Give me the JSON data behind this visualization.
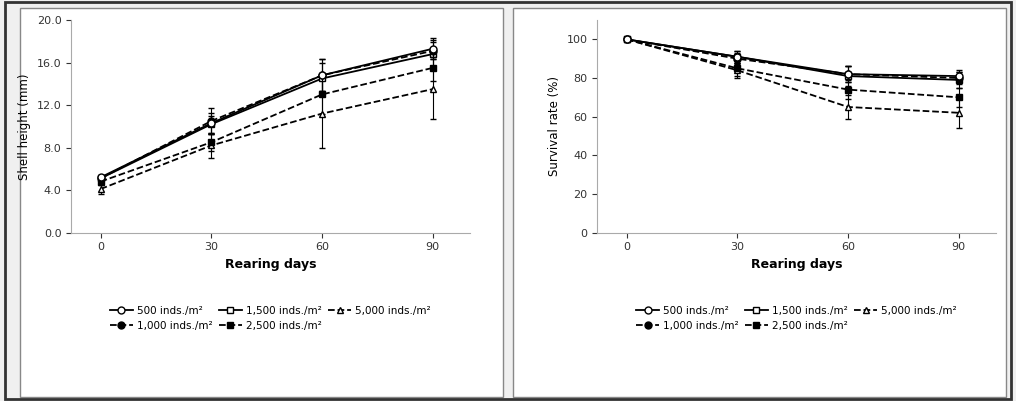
{
  "days": [
    0,
    30,
    60,
    90
  ],
  "shell_500": [
    5.2,
    10.3,
    14.8,
    17.3
  ],
  "shell_1000": [
    5.1,
    10.5,
    14.8,
    17.1
  ],
  "shell_1500": [
    5.1,
    10.2,
    14.5,
    16.8
  ],
  "shell_2500": [
    4.8,
    8.5,
    13.0,
    15.5
  ],
  "shell_5000": [
    4.1,
    8.2,
    11.2,
    13.5
  ],
  "shell_err_500": [
    0.2,
    1.0,
    1.5,
    0.8
  ],
  "shell_err_1000": [
    0.2,
    1.2,
    1.5,
    0.8
  ],
  "shell_err_1500": [
    0.2,
    0.8,
    1.5,
    1.5
  ],
  "shell_err_2500": [
    0.3,
    0.8,
    1.8,
    1.2
  ],
  "shell_err_5000": [
    0.5,
    1.2,
    3.2,
    2.8
  ],
  "surv_500": [
    100,
    91,
    82,
    81
  ],
  "surv_1000": [
    100,
    90,
    82,
    80
  ],
  "surv_1500": [
    100,
    91,
    81,
    79
  ],
  "surv_2500": [
    100,
    85,
    74,
    70
  ],
  "surv_5000": [
    100,
    84,
    65,
    62
  ],
  "surv_err_500": [
    0,
    3,
    4,
    3
  ],
  "surv_err_1000": [
    0,
    3,
    4,
    3
  ],
  "surv_err_1500": [
    0,
    3,
    5,
    4
  ],
  "surv_err_2500": [
    0,
    4,
    5,
    5
  ],
  "surv_err_5000": [
    0,
    4,
    6,
    8
  ],
  "xlabel": "Rearing days",
  "ylabel_left": "Shell height (mm)",
  "ylabel_right": "Survival rate (%)",
  "legend_labels": [
    "500 inds./m²",
    "1,000 inds./m²",
    "1,500 inds./m²",
    "2,500 inds./m²",
    "5,000 inds./m²"
  ],
  "color": "#000000",
  "bg_color": "#f0f0f0",
  "plot_bg": "#ffffff",
  "border_color": "#555555"
}
